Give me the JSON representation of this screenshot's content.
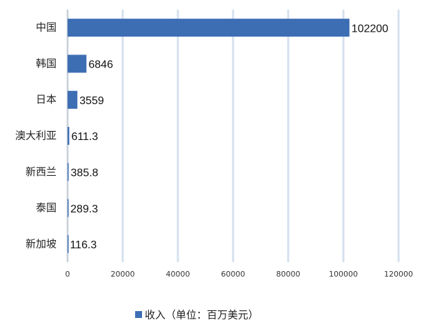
{
  "chart_data": {
    "type": "hbar",
    "categories": [
      "中国",
      "韩国",
      "日本",
      "澳大利亚",
      "新西兰",
      "泰国",
      "新加坡"
    ],
    "series": [
      {
        "name": "收入（单位：百万美元）",
        "color": "#3d6eb4",
        "values": [
          102200,
          6846,
          3559,
          611.3,
          385.8,
          289.3,
          116.3
        ]
      }
    ],
    "xlim": [
      0,
      120000
    ],
    "xticks": [
      0,
      20000,
      40000,
      60000,
      80000,
      100000,
      120000
    ],
    "grid": true,
    "legend": "bottom"
  }
}
